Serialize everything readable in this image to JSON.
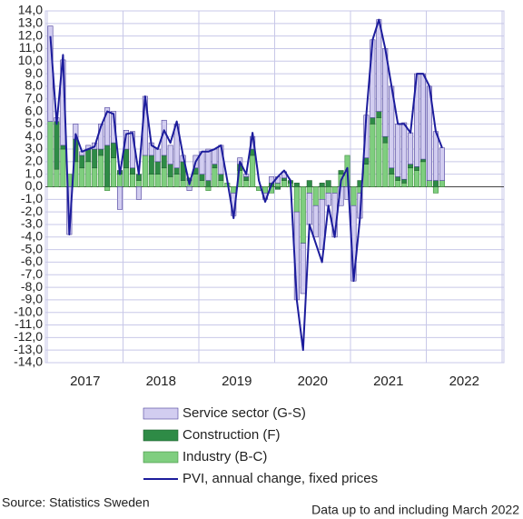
{
  "chart_data": {
    "type": "bar",
    "stacked": true,
    "grid": true,
    "categories": [
      "2017",
      null,
      null,
      null,
      null,
      null,
      null,
      null,
      null,
      null,
      null,
      null,
      "2018",
      null,
      null,
      null,
      null,
      null,
      null,
      null,
      null,
      null,
      null,
      null,
      "2019",
      null,
      null,
      null,
      null,
      null,
      null,
      null,
      null,
      null,
      null,
      null,
      "2020",
      null,
      null,
      null,
      null,
      null,
      null,
      null,
      null,
      null,
      null,
      null,
      "2021",
      null,
      null,
      null,
      null,
      null,
      null,
      null,
      null,
      null,
      null,
      null,
      "2022",
      null,
      null
    ],
    "ylim": [
      -14,
      14
    ],
    "yticks": [
      {
        "value": 14,
        "label": "14,0"
      },
      {
        "value": 13,
        "label": "13,0"
      },
      {
        "value": 12,
        "label": "12,0"
      },
      {
        "value": 11,
        "label": "11,0"
      },
      {
        "value": 10,
        "label": "10,0"
      },
      {
        "value": 9,
        "label": "9,0"
      },
      {
        "value": 8,
        "label": "8,0"
      },
      {
        "value": 7,
        "label": "7,0"
      },
      {
        "value": 6,
        "label": "6,0"
      },
      {
        "value": 5,
        "label": "5,0"
      },
      {
        "value": 4,
        "label": "4,0"
      },
      {
        "value": 3,
        "label": "3,0"
      },
      {
        "value": 2,
        "label": "2,0"
      },
      {
        "value": 1,
        "label": "1,0"
      },
      {
        "value": 0,
        "label": "0,0"
      },
      {
        "value": -1,
        "label": "-1,0"
      },
      {
        "value": -2,
        "label": "-2,0"
      },
      {
        "value": -3,
        "label": "-3,0"
      },
      {
        "value": -4,
        "label": "-4,0"
      },
      {
        "value": -5,
        "label": "-5,0"
      },
      {
        "value": -6,
        "label": "-6,0"
      },
      {
        "value": -7,
        "label": "-7,0"
      },
      {
        "value": -8,
        "label": "-8,0"
      },
      {
        "value": -9,
        "label": "-9,0"
      },
      {
        "value": -10,
        "label": "-10,0"
      },
      {
        "value": -11,
        "label": "-11,0"
      },
      {
        "value": -12,
        "label": "-12,0"
      },
      {
        "value": -13,
        "label": "-13,0"
      },
      {
        "value": -14,
        "label": "-14,0"
      }
    ],
    "series": [
      {
        "name": "Service sector (G-S)",
        "type": "bar",
        "color": "#d2cdf0",
        "stroke": "#4a3f9a",
        "values": [
          7.6,
          0.3,
          6.8,
          -3.8,
          1.2,
          0.3,
          0.3,
          0.5,
          2.0,
          3.0,
          2.5,
          -1.8,
          1.5,
          2.9,
          -1.0,
          4.7,
          1.0,
          1.0,
          2.8,
          1.5,
          3.5,
          0.5,
          -0.3,
          1.0,
          1.8,
          2.5,
          1.2,
          2.3,
          0,
          -1.8,
          0.5,
          0.2,
          1.0,
          0,
          -0.5,
          0.5,
          0.5,
          0.5,
          0,
          -7.0,
          -4.0,
          -2.5,
          -2.5,
          -4.0,
          -1.0,
          -3.5,
          -1.5,
          -1.0,
          -6.0,
          -2.0,
          3.4,
          6.2,
          7.3,
          7.0,
          6.5,
          4.2,
          4.5,
          2.5,
          7.4,
          6.8,
          7.5,
          3.9,
          2.6
        ]
      },
      {
        "name": "Construction (F)",
        "type": "bar",
        "color": "#2e8b46",
        "stroke": "#1f5f30",
        "values": [
          0,
          3.8,
          0.3,
          0,
          1.8,
          1.0,
          1.0,
          1.5,
          0.5,
          3.3,
          1.2,
          0.3,
          1.5,
          0.5,
          0.5,
          0,
          1.5,
          1.0,
          1.0,
          1.0,
          0.5,
          1.5,
          0.2,
          0.5,
          0.5,
          0.5,
          0.3,
          0.5,
          0,
          0,
          0.5,
          0.3,
          0.5,
          0,
          0,
          0.3,
          -0.2,
          0.2,
          0.2,
          0.3,
          0,
          0.5,
          0,
          0.3,
          0.5,
          0,
          0.3,
          0,
          0,
          0.5,
          0.5,
          0.5,
          0.5,
          0.5,
          0.5,
          0.3,
          0.3,
          0.3,
          0.3,
          0.2,
          0,
          0.5,
          0
        ]
      },
      {
        "name": "Industry (B-C)",
        "type": "bar",
        "color": "#7fce7f",
        "stroke": "#3f8f3f",
        "values": [
          5.2,
          1.4,
          3.0,
          1.0,
          2.0,
          1.5,
          2.0,
          1.5,
          2.5,
          -0.3,
          2.3,
          1.0,
          1.5,
          1.0,
          0.5,
          2.5,
          1.0,
          1.0,
          1.5,
          0.8,
          1.0,
          0.5,
          0.5,
          1.0,
          0.5,
          -0.3,
          1.5,
          0.5,
          0.3,
          -0.5,
          1.3,
          0.5,
          2.5,
          -0.3,
          -0.5,
          -0.5,
          0.3,
          0.5,
          0.3,
          -2.0,
          -4.5,
          -0.5,
          -1.5,
          -1.0,
          -0.5,
          -0.5,
          1.0,
          2.5,
          -1.5,
          -0.5,
          1.8,
          5.0,
          5.5,
          3.5,
          1.0,
          0.5,
          0.3,
          1.5,
          1.3,
          2.0,
          0.5,
          -0.5,
          0.5
        ]
      },
      {
        "name": "PVI, annual change, fixed prices",
        "type": "line",
        "color": "#1c1c9c",
        "values": [
          12.0,
          5.0,
          10.5,
          -3.8,
          4.2,
          2.8,
          3.0,
          3.2,
          4.8,
          6.0,
          5.8,
          1.0,
          4.2,
          4.3,
          1.0,
          7.2,
          3.3,
          3.0,
          4.5,
          3.5,
          5.2,
          2.5,
          0.2,
          2.0,
          2.8,
          2.8,
          3.0,
          3.3,
          0.5,
          -2.5,
          2.0,
          1.0,
          4.3,
          0.5,
          -1.2,
          0.2,
          0.8,
          1.3,
          0.5,
          -9.0,
          -13.0,
          -3.0,
          -4.5,
          -6.0,
          -1.5,
          -4.0,
          0.5,
          1.5,
          -7.5,
          -2.5,
          5.7,
          11.7,
          13.3,
          11.0,
          8.0,
          5.0,
          5.0,
          4.3,
          9.0,
          9.0,
          8.0,
          4.4,
          3.1
        ]
      }
    ],
    "source": "Source: Statistics Sweden",
    "note": "Data up to and including March 2022"
  }
}
